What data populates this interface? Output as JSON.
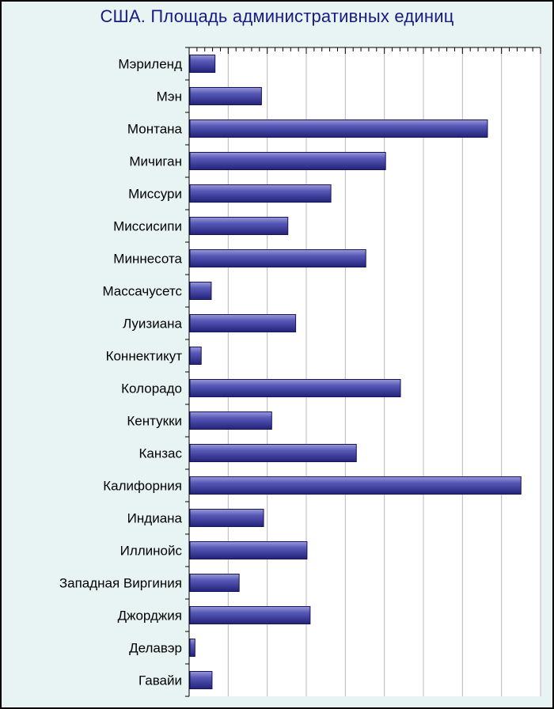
{
  "chart_data": {
    "type": "bar",
    "orientation": "horizontal",
    "title": "США. Площадь административных единиц",
    "xlabel": "",
    "ylabel": "",
    "grid": true,
    "legend": "none",
    "bar_color": "#3c3c9c",
    "categories": [
      "Мэриленд",
      "Мэн",
      "Монтана",
      "Мичиган",
      "Миссури",
      "Миссисипи",
      "Миннесота",
      "Массачусетс",
      "Луизиана",
      "Коннектикут",
      "Колорадо",
      "Кентукки",
      "Канзас",
      "Калифорния",
      "Индиана",
      "Иллинойс",
      "Западная Виргиния",
      "Джорджия",
      "Делавэр",
      "Гавайи"
    ],
    "values": [
      32.1,
      91.6,
      381.0,
      250.5,
      180.5,
      125.4,
      225.2,
      27.3,
      135.4,
      14.4,
      269.6,
      104.7,
      213.1,
      423.9,
      94.3,
      149.9,
      63.0,
      153.9,
      6.4,
      28.3
    ],
    "xlim": [
      0,
      450
    ]
  }
}
